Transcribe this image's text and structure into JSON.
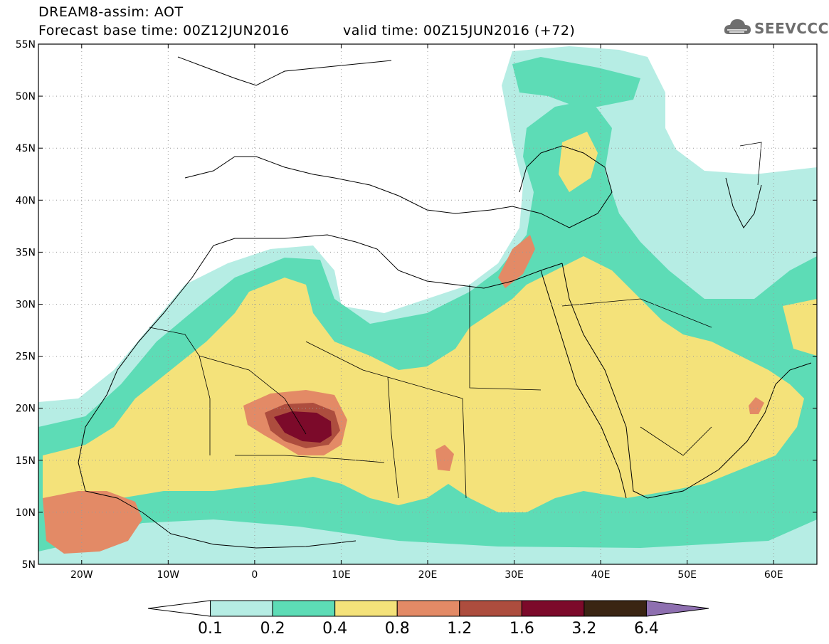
{
  "header": {
    "title": "DREAM8-assim: AOT",
    "base_time": "Forecast base time: 00Z12JUN2016",
    "valid_time": "valid time: 00Z15JUN2016 (+72)"
  },
  "logo": {
    "text": "SEEVCCC",
    "icon": "cloud-icon"
  },
  "map": {
    "variable": "AOT",
    "extent": {
      "lon_min": -25,
      "lon_max": 65,
      "lat_min": 5,
      "lat_max": 55
    },
    "lat_ticks": [
      {
        "value": 55,
        "label": "55N"
      },
      {
        "value": 50,
        "label": "50N"
      },
      {
        "value": 45,
        "label": "45N"
      },
      {
        "value": 40,
        "label": "40N"
      },
      {
        "value": 35,
        "label": "35N"
      },
      {
        "value": 30,
        "label": "30N"
      },
      {
        "value": 25,
        "label": "25N"
      },
      {
        "value": 20,
        "label": "20N"
      },
      {
        "value": 15,
        "label": "15N"
      },
      {
        "value": 10,
        "label": "10N"
      },
      {
        "value": 5,
        "label": "5N"
      }
    ],
    "lon_ticks": [
      {
        "value": -20,
        "label": "20W"
      },
      {
        "value": -10,
        "label": "10W"
      },
      {
        "value": 0,
        "label": "0"
      },
      {
        "value": 10,
        "label": "10E"
      },
      {
        "value": 20,
        "label": "20E"
      },
      {
        "value": 30,
        "label": "30E"
      },
      {
        "value": 40,
        "label": "40E"
      },
      {
        "value": 50,
        "label": "50E"
      },
      {
        "value": 60,
        "label": "60E"
      }
    ],
    "grid": "dotted"
  },
  "colorbar": {
    "levels": [
      "0.1",
      "0.2",
      "0.4",
      "0.8",
      "1.2",
      "1.6",
      "3.2",
      "6.4"
    ],
    "colors": [
      "#ffffff",
      "#b6ede4",
      "#5ddcb6",
      "#f4e27a",
      "#e38a66",
      "#ad4d3e",
      "#7c0a2a",
      "#3a2513",
      "#8e6fb0"
    ]
  }
}
